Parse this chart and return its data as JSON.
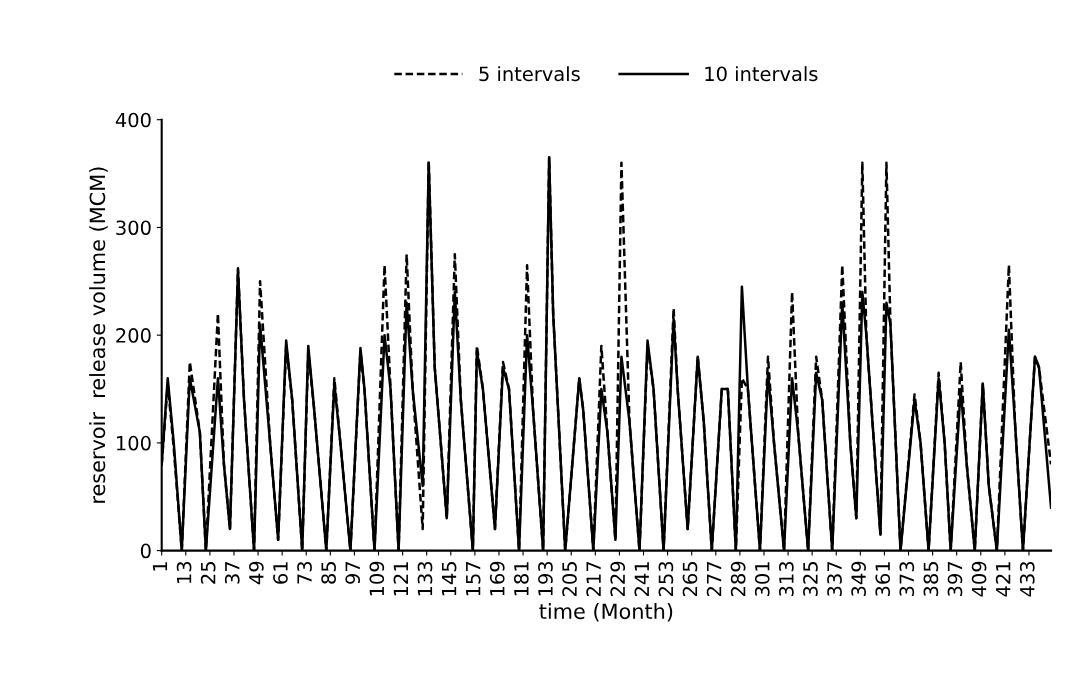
{
  "chart_data": {
    "type": "line",
    "xlabel": "time (Month)",
    "ylabel": "reservoir  release volume (MCM)",
    "x": [
      1,
      4,
      7,
      11,
      15,
      20,
      23,
      29,
      32,
      35,
      39,
      42,
      47,
      50,
      55,
      59,
      63,
      66,
      71,
      74,
      77,
      83,
      87,
      90,
      95,
      100,
      102,
      107,
      112,
      115,
      119,
      123,
      126,
      131,
      134,
      137,
      143,
      147,
      150,
      156,
      158,
      161,
      167,
      171,
      174,
      179,
      183,
      186,
      191,
      194,
      196,
      202,
      209,
      211,
      216,
      220,
      223,
      227,
      230,
      234,
      239,
      243,
      246,
      251,
      256,
      258,
      263,
      268,
      271,
      275,
      280,
      283,
      287,
      290,
      293,
      299,
      303,
      306,
      311,
      315,
      318,
      323,
      327,
      330,
      335,
      340,
      344,
      347,
      350,
      352,
      359,
      362,
      364,
      369,
      376,
      379,
      383,
      388,
      391,
      394,
      399,
      402,
      406,
      410,
      413,
      417,
      423,
      426,
      430,
      436,
      438,
      444
    ],
    "series": [
      {
        "name": "5 intervals",
        "color": "#000000",
        "line_style": "dashed",
        "values": [
          80,
          155,
          95,
          0,
          175,
          110,
          0,
          220,
          80,
          20,
          262,
          140,
          0,
          250,
          100,
          10,
          190,
          140,
          0,
          185,
          130,
          0,
          160,
          100,
          0,
          185,
          150,
          0,
          265,
          150,
          0,
          275,
          150,
          20,
          362,
          170,
          30,
          275,
          140,
          0,
          190,
          150,
          20,
          175,
          150,
          0,
          265,
          130,
          0,
          365,
          220,
          0,
          160,
          130,
          0,
          190,
          110,
          10,
          360,
          120,
          0,
          190,
          150,
          0,
          225,
          150,
          20,
          180,
          120,
          0,
          150,
          150,
          0,
          160,
          150,
          0,
          180,
          100,
          0,
          240,
          110,
          0,
          180,
          140,
          0,
          265,
          100,
          30,
          360,
          200,
          15,
          360,
          210,
          0,
          145,
          100,
          0,
          165,
          100,
          0,
          175,
          80,
          0,
          155,
          60,
          0,
          265,
          120,
          0,
          180,
          170,
          80
        ]
      },
      {
        "name": "10 intervals",
        "color": "#000000",
        "line_style": "solid",
        "values": [
          80,
          160,
          100,
          0,
          160,
          110,
          0,
          160,
          80,
          20,
          260,
          140,
          0,
          210,
          100,
          10,
          195,
          140,
          0,
          190,
          130,
          0,
          155,
          100,
          0,
          188,
          150,
          0,
          200,
          150,
          0,
          230,
          150,
          60,
          360,
          170,
          30,
          240,
          140,
          0,
          185,
          150,
          20,
          170,
          150,
          0,
          200,
          130,
          0,
          365,
          220,
          0,
          160,
          130,
          0,
          150,
          110,
          10,
          180,
          120,
          0,
          195,
          150,
          0,
          215,
          150,
          20,
          180,
          120,
          0,
          150,
          150,
          0,
          245,
          150,
          0,
          165,
          100,
          0,
          160,
          110,
          0,
          165,
          140,
          0,
          230,
          100,
          30,
          240,
          200,
          15,
          230,
          210,
          0,
          140,
          100,
          0,
          160,
          100,
          0,
          150,
          80,
          0,
          155,
          60,
          0,
          205,
          120,
          0,
          180,
          170,
          40
        ]
      }
    ],
    "xlim": [
      1,
      444
    ],
    "xticks": [
      1,
      13,
      25,
      37,
      49,
      61,
      73,
      85,
      97,
      109,
      121,
      133,
      145,
      157,
      169,
      181,
      193,
      205,
      217,
      229,
      241,
      253,
      265,
      277,
      289,
      301,
      313,
      325,
      337,
      349,
      361,
      373,
      385,
      397,
      409,
      421,
      433
    ],
    "ylim": [
      0,
      400
    ],
    "yticks": [
      0,
      100,
      200,
      300,
      400
    ],
    "grid": false,
    "legend": "top",
    "marker": "none"
  }
}
